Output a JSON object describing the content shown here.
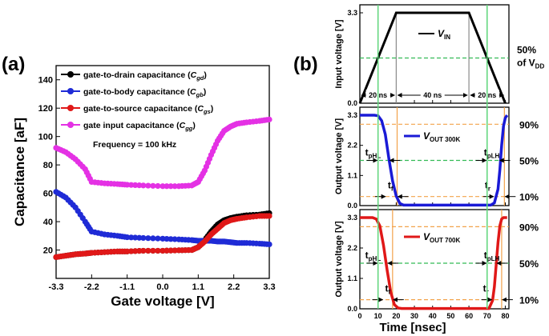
{
  "chart_data": [
    {
      "panel_label": "(a)",
      "type": "line",
      "xlabel": "Gate voltage [V]",
      "ylabel": "Capacitance [aF]",
      "xlim": [
        -3.3,
        3.3
      ],
      "ylim": [
        0,
        150
      ],
      "xticks": [
        "-3.3",
        "-2.2",
        "-1.1",
        "0.0",
        "1.1",
        "2.2",
        "3.3"
      ],
      "xtick_values": [
        -3.3,
        -2.2,
        -1.1,
        0.0,
        1.1,
        2.2,
        3.3
      ],
      "yticks": [
        20,
        40,
        60,
        80,
        100,
        120,
        140
      ],
      "annotation": "Frequency = 100 kHz",
      "x": [
        -3.3,
        -3.0,
        -2.7,
        -2.4,
        -2.2,
        -1.8,
        -1.4,
        -1.1,
        -0.6,
        0.0,
        0.5,
        0.9,
        1.1,
        1.3,
        1.5,
        1.7,
        1.9,
        2.1,
        2.3,
        2.6,
        3.0,
        3.3
      ],
      "series": [
        {
          "name": "gate-to-drain capacitance",
          "sub": "gd",
          "color": "#000000",
          "values": [
            15,
            16,
            17,
            17.5,
            18,
            18.5,
            19,
            19,
            19.5,
            19.5,
            19.8,
            20,
            22,
            27,
            33,
            38,
            41,
            42.5,
            43.5,
            44.5,
            45,
            46
          ]
        },
        {
          "name": "gate-to-body capacitance",
          "sub": "gb",
          "color": "#1f2bd6",
          "values": [
            61,
            57,
            50,
            40,
            33,
            31,
            30,
            29,
            28.5,
            28,
            27.5,
            27,
            26.5,
            26.5,
            26.5,
            26,
            26,
            25.5,
            25,
            25,
            24.5,
            24
          ]
        },
        {
          "name": "gate-to-source capacitance",
          "sub": "gs",
          "color": "#e01818",
          "values": [
            15,
            16,
            17,
            17.5,
            18,
            18.5,
            19,
            19,
            19.5,
            19.5,
            19.8,
            20,
            22,
            26,
            31,
            35,
            39,
            41,
            42,
            43,
            44,
            44
          ]
        },
        {
          "name": "gate input capacitance",
          "sub": "gg",
          "color": "#e431e4",
          "values": [
            92,
            89,
            84,
            77,
            68,
            67,
            66.5,
            66,
            65.5,
            65,
            65,
            65.5,
            68,
            76,
            87,
            97,
            104,
            107,
            109,
            110,
            111,
            112
          ]
        }
      ]
    },
    {
      "panel_label": "(b)",
      "type": "line",
      "xlabel": "Time [nsec]",
      "xlim": [
        0,
        82
      ],
      "xticks": [
        0,
        10,
        20,
        30,
        40,
        50,
        60,
        70,
        80
      ],
      "subplots": [
        {
          "ylabel": "Input voltage [V]",
          "ylim": [
            0,
            3.3
          ],
          "yticks": [
            "0.0",
            "3.3"
          ],
          "ytick_values": [
            0,
            3.3
          ],
          "series": [
            {
              "name": "V",
              "sub": "IN",
              "color": "#000000",
              "x": [
                0,
                20,
                60,
                80
              ],
              "y": [
                0,
                3.3,
                3.3,
                0
              ]
            }
          ],
          "spans": {
            "rise": "20 ns",
            "high": "40 ns",
            "fall": "20 ns"
          },
          "spans_x": [
            0,
            20,
            60,
            80
          ],
          "midline_label": [
            "50%",
            "of  V",
            "DD"
          ],
          "midline_value": 1.65
        },
        {
          "ylabel": "Output voltage [V]",
          "ylim": [
            0,
            3.3
          ],
          "yticks": [
            "0.0",
            "1.1",
            "2.2",
            "3.3"
          ],
          "ytick_values": [
            0,
            1.1,
            2.2,
            3.3
          ],
          "series": [
            {
              "name": "V",
              "sub": "OUT  300K",
              "color": "#1a1ad6",
              "x": [
                0,
                8,
                10,
                12,
                14,
                16,
                18,
                20,
                22,
                24,
                60,
                72,
                74,
                76,
                77,
                78,
                79,
                80,
                81
              ],
              "y": [
                3.3,
                3.3,
                3.28,
                3.1,
                2.6,
                1.7,
                0.9,
                0.35,
                0.08,
                0.02,
                0.02,
                0.02,
                0.1,
                0.6,
                1.3,
                2.2,
                2.9,
                3.2,
                3.3
              ]
            }
          ],
          "levels": {
            "p90": 2.97,
            "p50": 1.65,
            "p10": 0.33
          },
          "level_labels": [
            "90%",
            "50%",
            "10%"
          ],
          "markers": {
            "tpHL": [
              10,
              16
            ],
            "tf": [
              14.5,
              20.5
            ],
            "tpLH": [
              70,
              76.5
            ],
            "tr": [
              74,
              79.5
            ]
          },
          "marker_labels": {
            "tpHL": [
              "t",
              "pHL"
            ],
            "tf": [
              "t",
              "f"
            ],
            "tpLH": [
              "t",
              "pLH"
            ],
            "tr": [
              "t",
              "r"
            ]
          }
        },
        {
          "ylabel": "Output voltage [V]",
          "ylim": [
            0,
            3.3
          ],
          "yticks": [
            "0.0",
            "1.1",
            "2.2",
            "3.3"
          ],
          "ytick_values": [
            0,
            1.1,
            2.2,
            3.3
          ],
          "series": [
            {
              "name": "V",
              "sub": "OUT  700K",
              "color": "#e01818",
              "x": [
                0,
                7,
                9,
                11,
                13,
                15,
                17,
                19,
                21,
                23,
                66,
                71,
                73,
                74,
                75,
                76,
                77,
                78,
                79,
                81
              ],
              "y": [
                3.3,
                3.3,
                3.25,
                3.0,
                2.3,
                1.4,
                0.6,
                0.15,
                0.03,
                0.01,
                0.01,
                0.01,
                0.3,
                0.8,
                1.6,
                2.4,
                3.0,
                3.25,
                3.3,
                3.3
              ]
            }
          ],
          "levels": {
            "p90": 2.97,
            "p50": 1.65,
            "p10": 0.33
          },
          "level_labels": [
            "90%",
            "50%",
            "10%"
          ],
          "markers": {
            "tpHL": [
              10,
              15
            ],
            "tf": [
              13,
              18
            ],
            "tpLH": [
              70,
              75
            ],
            "tr": [
              73,
              78
            ]
          },
          "marker_labels": {
            "tpHL": [
              "t",
              "pHL"
            ],
            "tf": [
              "t",
              "f"
            ],
            "tpLH": [
              "t",
              "pLH"
            ],
            "tr": [
              "t",
              "r"
            ]
          }
        }
      ]
    }
  ]
}
